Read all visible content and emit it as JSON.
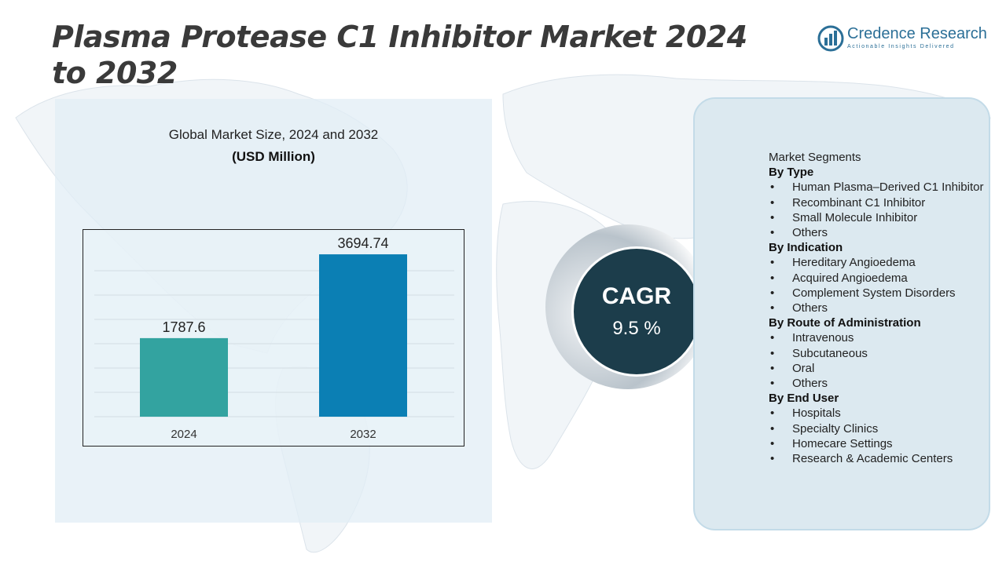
{
  "title": "Plasma Protease C1 Inhibitor Market 2024 to 2032",
  "logo": {
    "name": "Credence Research",
    "tagline": "Actionable Insights Delivered",
    "icon": "credence-logo-icon"
  },
  "colors": {
    "bar_2024": "#33a3a0",
    "bar_2032": "#0b7fb4",
    "cagr_circle": "#1c3d4b",
    "panel": "#dce9f0"
  },
  "chart_data": {
    "type": "bar",
    "title": "Global Market Size, 2024 and 2032",
    "unit": "(USD Million)",
    "categories": [
      "2024",
      "2032"
    ],
    "values": [
      1787.6,
      3694.74
    ],
    "data_labels": [
      "1787.6",
      "3694.74"
    ],
    "ylim": [
      0,
      4000
    ],
    "grid": true,
    "legend": "none"
  },
  "cagr": {
    "label": "CAGR",
    "value": "9.5 %"
  },
  "segments": {
    "heading": "Market Segments",
    "groups": [
      {
        "title": "By Type",
        "items": [
          "Human Plasma–Derived C1 Inhibitor",
          "Recombinant C1 Inhibitor",
          "Small Molecule Inhibitor",
          "Others"
        ]
      },
      {
        "title": "By Indication",
        "items": [
          "Hereditary Angioedema",
          "Acquired Angioedema",
          "Complement System Disorders",
          "Others"
        ]
      },
      {
        "title": "By Route of Administration",
        "items": [
          "Intravenous",
          "Subcutaneous",
          "Oral",
          "Others"
        ]
      },
      {
        "title": "By End User",
        "items": [
          "Hospitals",
          "Specialty Clinics",
          "Homecare Settings",
          "Research & Academic Centers"
        ]
      }
    ]
  }
}
